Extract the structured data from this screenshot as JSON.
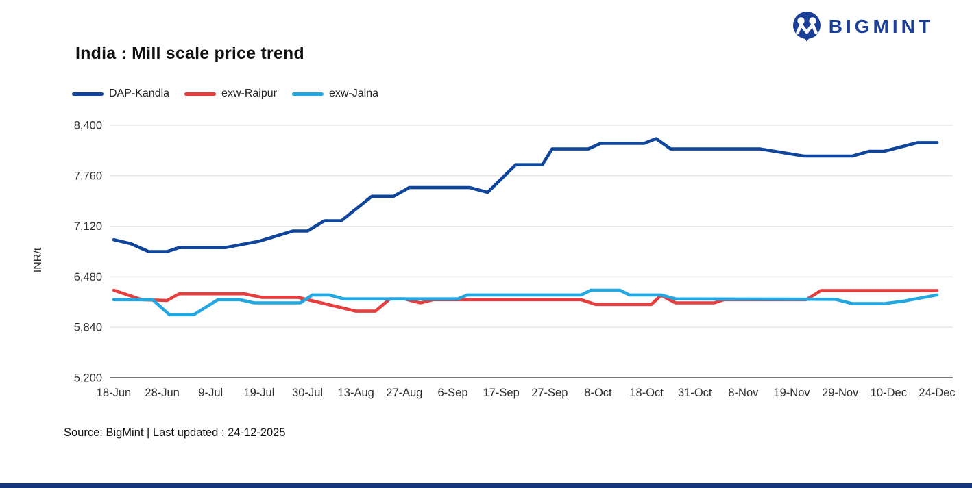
{
  "header": {
    "brand": "BIGMINT"
  },
  "title": "India : Mill scale price trend",
  "legend": [
    {
      "label": "DAP-Kandla",
      "color": "#10459c"
    },
    {
      "label": "exw-Raipur",
      "color": "#e63e3e"
    },
    {
      "label": "exw-Jalna",
      "color": "#23a7e0"
    }
  ],
  "footer": {
    "source": "Source: BigMint | Last updated : 24-12-2025"
  },
  "chart_data": {
    "type": "line",
    "title": "India : Mill scale price trend",
    "xlabel": "",
    "ylabel": "INR/t",
    "ylim": [
      5200,
      8400
    ],
    "yticks": [
      5200,
      5840,
      6480,
      7120,
      7760,
      8400
    ],
    "grid": "horizontal",
    "legend_position": "top-left",
    "x_tick_labels": [
      "18-Jun",
      "28-Jun",
      "9-Jul",
      "19-Jul",
      "30-Jul",
      "13-Aug",
      "27-Aug",
      "6-Sep",
      "17-Sep",
      "27-Sep",
      "8-Oct",
      "18-Oct",
      "31-Oct",
      "8-Nov",
      "19-Nov",
      "29-Nov",
      "10-Dec",
      "24-Dec"
    ],
    "unit": "INR/t",
    "series": [
      {
        "name": "DAP-Kandla",
        "color": "#10459c",
        "points": [
          [
            0,
            6950
          ],
          [
            0.35,
            6900
          ],
          [
            0.72,
            6800
          ],
          [
            1.1,
            6800
          ],
          [
            1.35,
            6850
          ],
          [
            2.3,
            6850
          ],
          [
            3.0,
            6930
          ],
          [
            3.7,
            7060
          ],
          [
            4.0,
            7060
          ],
          [
            4.35,
            7190
          ],
          [
            4.7,
            7190
          ],
          [
            5.33,
            7500
          ],
          [
            5.78,
            7500
          ],
          [
            6.1,
            7610
          ],
          [
            7.35,
            7610
          ],
          [
            7.72,
            7550
          ],
          [
            8.3,
            7900
          ],
          [
            8.85,
            7900
          ],
          [
            9.05,
            8100
          ],
          [
            9.8,
            8100
          ],
          [
            10.05,
            8170
          ],
          [
            10.95,
            8170
          ],
          [
            11.2,
            8230
          ],
          [
            11.5,
            8100
          ],
          [
            13.35,
            8100
          ],
          [
            14.25,
            8010
          ],
          [
            15.25,
            8010
          ],
          [
            15.6,
            8070
          ],
          [
            15.9,
            8070
          ],
          [
            16.6,
            8180
          ],
          [
            17,
            8180
          ]
        ]
      },
      {
        "name": "exw-Raipur",
        "color": "#e63e3e",
        "points": [
          [
            0,
            6310
          ],
          [
            0.58,
            6190
          ],
          [
            1.1,
            6180
          ],
          [
            1.35,
            6265
          ],
          [
            2.7,
            6265
          ],
          [
            3.05,
            6220
          ],
          [
            3.8,
            6220
          ],
          [
            5.0,
            6045
          ],
          [
            5.4,
            6045
          ],
          [
            5.7,
            6200
          ],
          [
            6.0,
            6200
          ],
          [
            6.33,
            6150
          ],
          [
            6.6,
            6190
          ],
          [
            9.65,
            6190
          ],
          [
            9.95,
            6130
          ],
          [
            11.1,
            6130
          ],
          [
            11.3,
            6245
          ],
          [
            11.6,
            6150
          ],
          [
            12.4,
            6150
          ],
          [
            12.6,
            6190
          ],
          [
            14.3,
            6190
          ],
          [
            14.6,
            6305
          ],
          [
            17,
            6305
          ]
        ]
      },
      {
        "name": "exw-Jalna",
        "color": "#23a7e0",
        "points": [
          [
            0,
            6190
          ],
          [
            0.8,
            6190
          ],
          [
            1.15,
            6000
          ],
          [
            1.65,
            6000
          ],
          [
            2.15,
            6190
          ],
          [
            2.6,
            6190
          ],
          [
            2.9,
            6150
          ],
          [
            3.85,
            6150
          ],
          [
            4.1,
            6250
          ],
          [
            4.45,
            6250
          ],
          [
            4.75,
            6200
          ],
          [
            7.1,
            6200
          ],
          [
            7.3,
            6250
          ],
          [
            9.65,
            6250
          ],
          [
            9.85,
            6310
          ],
          [
            10.45,
            6310
          ],
          [
            10.65,
            6250
          ],
          [
            11.3,
            6250
          ],
          [
            11.6,
            6200
          ],
          [
            14.9,
            6195
          ],
          [
            15.25,
            6140
          ],
          [
            15.9,
            6140
          ],
          [
            16.3,
            6170
          ],
          [
            17,
            6250
          ]
        ]
      }
    ]
  }
}
